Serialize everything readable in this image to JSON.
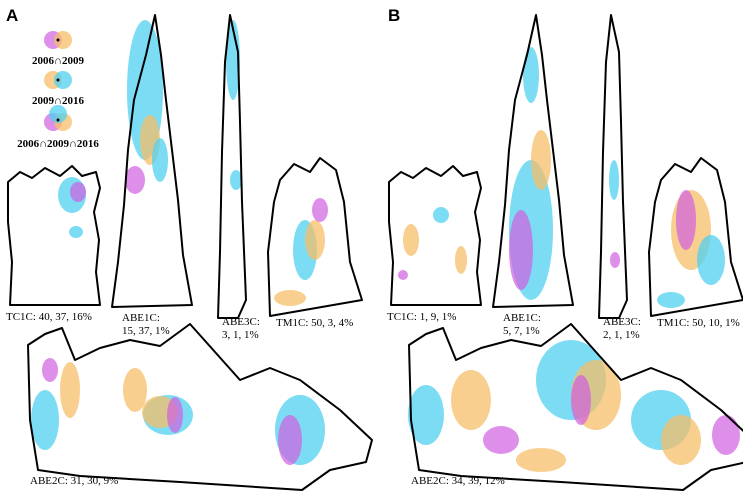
{
  "panels": [
    {
      "label": "A",
      "sites": [
        {
          "lines": [
            "TC1C: 40, 37, 16%"
          ]
        },
        {
          "lines": [
            "ABE1C:",
            "15, 37, 1%"
          ]
        },
        {
          "lines": [
            "ABE3C:",
            "3, 1, 1%"
          ]
        },
        {
          "lines": [
            "TM1C: 50, 3, 4%"
          ]
        },
        {
          "lines": [
            "ABE2C: 31, 30, 9%"
          ]
        }
      ]
    },
    {
      "label": "B",
      "sites": [
        {
          "lines": [
            "TC1C: 1, 9, 1%"
          ]
        },
        {
          "lines": [
            "ABE1C:",
            "5, 7, 1%"
          ]
        },
        {
          "lines": [
            "ABE3C:",
            "2, 1, 1%"
          ]
        },
        {
          "lines": [
            "TM1C: 50, 10, 1%"
          ]
        },
        {
          "lines": [
            "ABE2C: 34, 39, 12%"
          ]
        }
      ]
    }
  ],
  "legend": [
    "2006∩2009",
    "2009∩2016",
    "2006∩2009∩2016"
  ]
}
